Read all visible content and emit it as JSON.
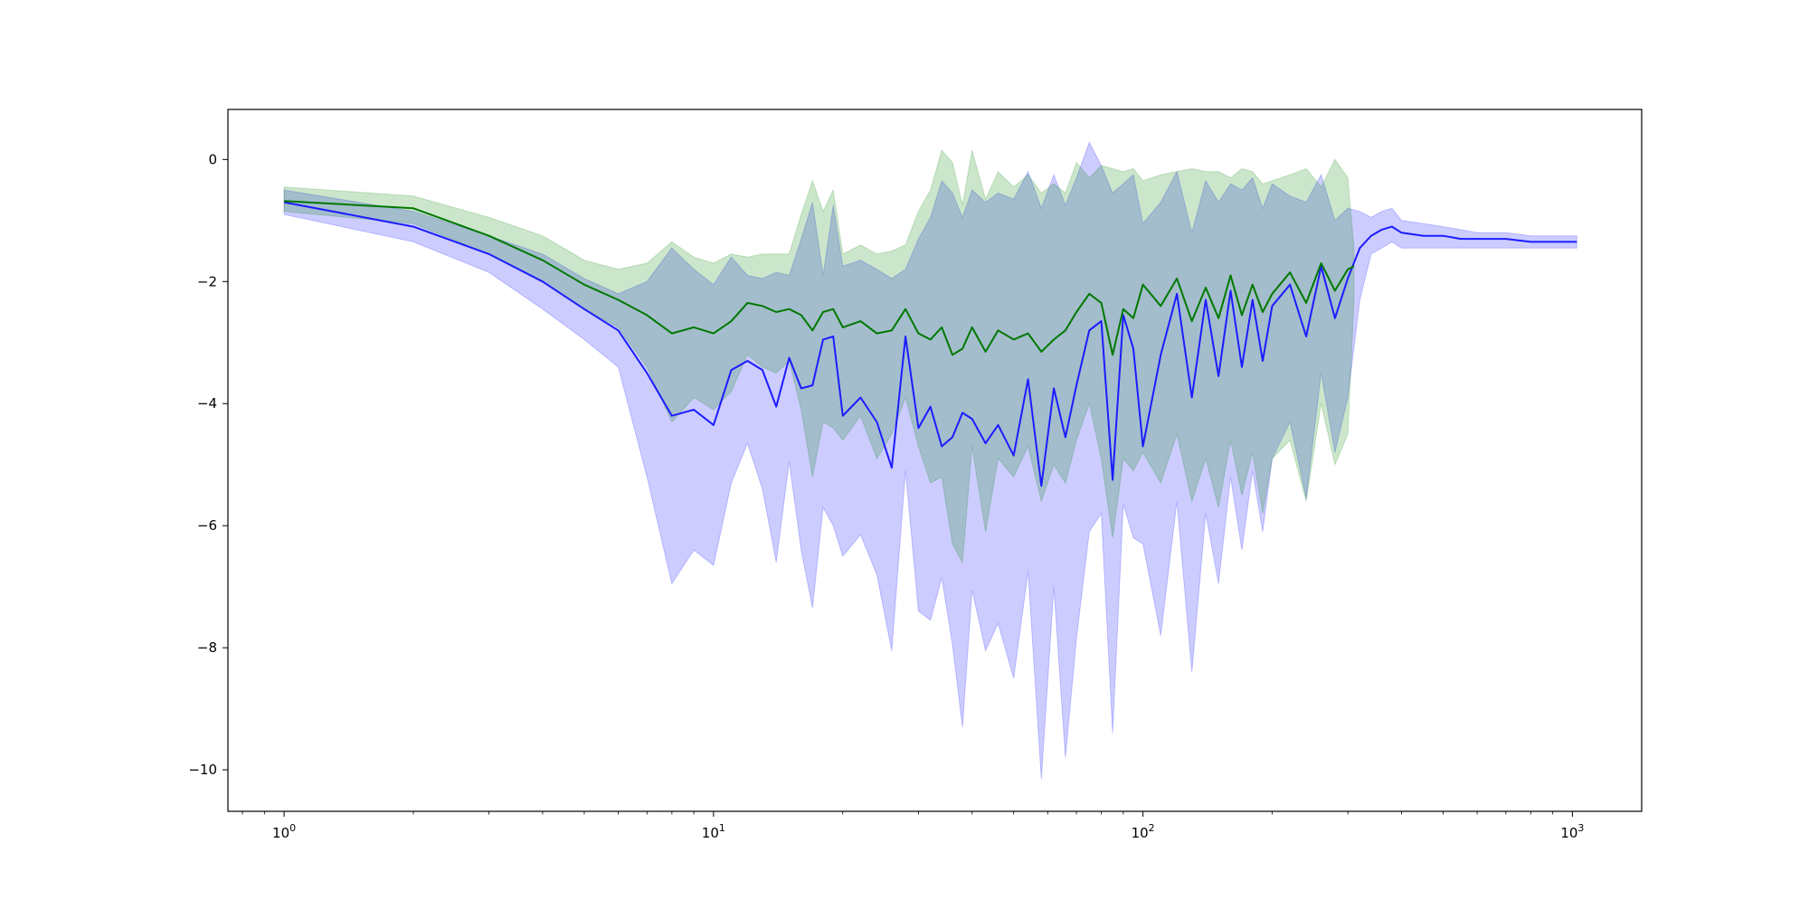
{
  "chart_data": {
    "type": "line",
    "title": "",
    "xlabel": "",
    "ylabel": "",
    "xscale": "log",
    "xlim": [
      0.74,
      1450
    ],
    "ylim": [
      -10.68,
      0.82
    ],
    "grid": false,
    "legend": "none",
    "x_ticks": [
      {
        "value": 1,
        "base": "10",
        "exp": "0"
      },
      {
        "value": 10,
        "base": "10",
        "exp": "1"
      },
      {
        "value": 100,
        "base": "10",
        "exp": "2"
      },
      {
        "value": 1000,
        "base": "10",
        "exp": "3"
      }
    ],
    "y_ticks": [
      {
        "value": 0,
        "label": "0"
      },
      {
        "value": -2,
        "label": "−2"
      },
      {
        "value": -4,
        "label": "−4"
      },
      {
        "value": -6,
        "label": "−6"
      },
      {
        "value": -8,
        "label": "−8"
      },
      {
        "value": -10,
        "label": "−10"
      }
    ],
    "series": [
      {
        "color": "#1c1cff",
        "band_color": "#0000ff",
        "band_opacity": 0.2,
        "x": [
          1,
          2,
          3,
          4,
          5,
          6,
          7,
          8,
          9,
          10,
          11,
          12,
          13,
          14,
          15,
          16,
          17,
          18,
          19,
          20,
          22,
          24,
          26,
          28,
          30,
          32,
          34,
          36,
          38,
          40,
          43,
          46,
          50,
          54,
          58,
          62,
          66,
          70,
          75,
          80,
          85,
          90,
          95,
          100,
          110,
          120,
          130,
          140,
          150,
          160,
          170,
          180,
          190,
          200,
          220,
          240,
          260,
          280,
          300,
          320,
          340,
          360,
          380,
          400,
          450,
          500,
          550,
          600,
          700,
          800,
          900,
          1024
        ],
        "y": [
          -0.7,
          -1.1,
          -1.55,
          -2.0,
          -2.45,
          -2.8,
          -3.5,
          -4.2,
          -4.1,
          -4.35,
          -3.45,
          -3.3,
          -3.45,
          -4.05,
          -3.25,
          -3.75,
          -3.7,
          -2.95,
          -2.9,
          -4.2,
          -3.9,
          -4.3,
          -5.05,
          -2.9,
          -4.4,
          -4.05,
          -4.7,
          -4.55,
          -4.15,
          -4.25,
          -4.65,
          -4.35,
          -4.85,
          -3.6,
          -5.35,
          -3.75,
          -4.55,
          -3.7,
          -2.8,
          -2.65,
          -5.25,
          -2.55,
          -3.1,
          -4.7,
          -3.2,
          -2.2,
          -3.9,
          -2.3,
          -3.55,
          -2.15,
          -3.4,
          -2.3,
          -3.3,
          -2.4,
          -2.05,
          -2.9,
          -1.75,
          -2.6,
          -1.95,
          -1.45,
          -1.25,
          -1.15,
          -1.1,
          -1.2,
          -1.25,
          -1.25,
          -1.3,
          -1.3,
          -1.3,
          -1.35,
          -1.35,
          -1.35
        ],
        "lower": [
          -0.9,
          -1.35,
          -1.85,
          -2.45,
          -2.95,
          -3.4,
          -5.2,
          -6.95,
          -6.4,
          -6.65,
          -5.3,
          -4.65,
          -5.4,
          -6.6,
          -4.95,
          -6.4,
          -7.35,
          -5.7,
          -6.0,
          -6.5,
          -6.15,
          -6.8,
          -8.05,
          -5.1,
          -7.4,
          -7.55,
          -6.85,
          -7.95,
          -9.3,
          -7.05,
          -8.05,
          -7.6,
          -8.5,
          -6.75,
          -10.15,
          -7.0,
          -9.8,
          -7.85,
          -6.1,
          -5.8,
          -9.4,
          -5.65,
          -6.2,
          -6.3,
          -7.8,
          -5.6,
          -8.4,
          -5.8,
          -6.95,
          -5.2,
          -6.4,
          -5.1,
          -6.1,
          -4.9,
          -4.3,
          -5.55,
          -3.5,
          -4.8,
          -3.9,
          -2.3,
          -1.55,
          -1.45,
          -1.35,
          -1.45,
          -1.45,
          -1.45,
          -1.45,
          -1.45,
          -1.45,
          -1.45,
          -1.45,
          -1.45
        ],
        "upper": [
          -0.5,
          -0.85,
          -1.25,
          -1.55,
          -1.95,
          -2.2,
          -2.0,
          -1.45,
          -1.8,
          -2.05,
          -1.6,
          -1.9,
          -1.95,
          -1.85,
          -1.9,
          -1.3,
          -0.7,
          -1.9,
          -0.75,
          -1.75,
          -1.65,
          -1.8,
          -1.95,
          -1.8,
          -1.3,
          -0.95,
          -0.35,
          -0.55,
          -0.95,
          -0.5,
          -0.7,
          -0.55,
          -0.65,
          -0.2,
          -0.8,
          -0.25,
          -0.75,
          -0.3,
          0.28,
          -0.1,
          -0.55,
          -0.4,
          -0.25,
          -1.05,
          -0.7,
          -0.2,
          -1.2,
          -0.35,
          -0.7,
          -0.4,
          -0.5,
          -0.3,
          -0.8,
          -0.4,
          -0.6,
          -0.7,
          -0.25,
          -1.0,
          -0.8,
          -0.85,
          -0.95,
          -0.85,
          -0.8,
          -1.0,
          -1.05,
          -1.1,
          -1.15,
          -1.2,
          -1.2,
          -1.25,
          -1.25,
          -1.25
        ]
      },
      {
        "color": "#007800",
        "band_color": "#008000",
        "band_opacity": 0.2,
        "x": [
          1,
          2,
          3,
          4,
          5,
          6,
          7,
          8,
          9,
          10,
          11,
          12,
          13,
          14,
          15,
          16,
          17,
          18,
          19,
          20,
          22,
          24,
          26,
          28,
          30,
          32,
          34,
          36,
          38,
          40,
          43,
          46,
          50,
          54,
          58,
          62,
          66,
          70,
          75,
          80,
          85,
          90,
          95,
          100,
          110,
          120,
          130,
          140,
          150,
          160,
          170,
          180,
          190,
          200,
          220,
          240,
          260,
          280,
          300,
          310
        ],
        "y": [
          -0.68,
          -0.8,
          -1.25,
          -1.65,
          -2.05,
          -2.3,
          -2.55,
          -2.85,
          -2.75,
          -2.85,
          -2.65,
          -2.35,
          -2.4,
          -2.5,
          -2.45,
          -2.55,
          -2.8,
          -2.5,
          -2.45,
          -2.75,
          -2.65,
          -2.85,
          -2.8,
          -2.45,
          -2.85,
          -2.95,
          -2.75,
          -3.2,
          -3.1,
          -2.75,
          -3.15,
          -2.8,
          -2.95,
          -2.85,
          -3.15,
          -2.95,
          -2.8,
          -2.5,
          -2.2,
          -2.35,
          -3.2,
          -2.45,
          -2.6,
          -2.05,
          -2.4,
          -1.95,
          -2.65,
          -2.1,
          -2.6,
          -1.9,
          -2.55,
          -2.05,
          -2.5,
          -2.2,
          -1.85,
          -2.35,
          -1.7,
          -2.15,
          -1.8,
          -1.75
        ],
        "lower": [
          -0.85,
          -1.05,
          -1.55,
          -2.0,
          -2.45,
          -2.75,
          -3.4,
          -4.3,
          -3.9,
          -4.1,
          -3.8,
          -3.2,
          -3.4,
          -3.5,
          -3.3,
          -4.1,
          -5.2,
          -4.3,
          -4.4,
          -4.6,
          -4.2,
          -4.9,
          -4.5,
          -3.9,
          -4.7,
          -5.3,
          -5.2,
          -6.3,
          -6.6,
          -4.7,
          -6.1,
          -4.9,
          -5.2,
          -4.7,
          -5.6,
          -5.0,
          -5.3,
          -4.6,
          -4.0,
          -4.9,
          -6.2,
          -4.9,
          -5.1,
          -4.8,
          -5.3,
          -4.5,
          -5.6,
          -4.9,
          -5.7,
          -4.6,
          -5.5,
          -4.8,
          -5.8,
          -4.9,
          -4.6,
          -5.6,
          -4.0,
          -5.0,
          -4.5,
          -2.3
        ],
        "upper": [
          -0.45,
          -0.6,
          -0.95,
          -1.25,
          -1.65,
          -1.8,
          -1.7,
          -1.35,
          -1.6,
          -1.7,
          -1.55,
          -1.6,
          -1.55,
          -1.55,
          -1.55,
          -0.9,
          -0.35,
          -0.85,
          -0.5,
          -1.55,
          -1.4,
          -1.55,
          -1.5,
          -1.4,
          -0.85,
          -0.5,
          0.15,
          -0.05,
          -0.75,
          0.15,
          -0.65,
          -0.2,
          -0.45,
          -0.25,
          -0.55,
          -0.4,
          -0.55,
          -0.05,
          -0.3,
          -0.1,
          -0.15,
          -0.2,
          -0.15,
          -0.35,
          -0.25,
          -0.2,
          -0.15,
          -0.2,
          -0.2,
          -0.3,
          -0.15,
          -0.2,
          -0.4,
          -0.35,
          -0.25,
          -0.15,
          -0.45,
          0.0,
          -0.3,
          -1.45
        ]
      }
    ]
  }
}
